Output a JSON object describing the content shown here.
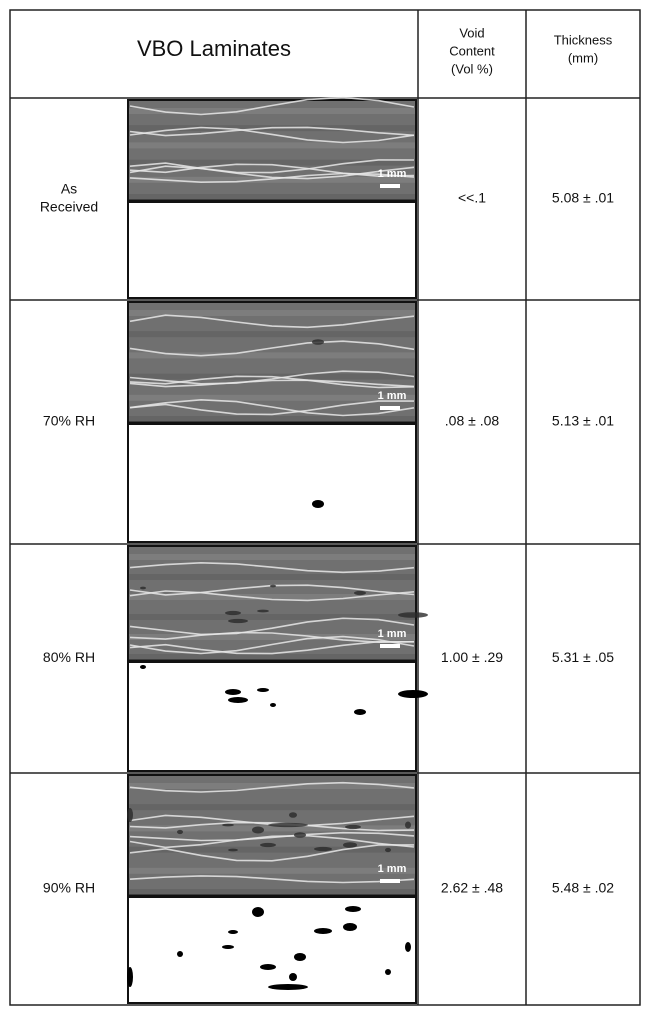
{
  "header": {
    "title": "VBO Laminates",
    "void_content": [
      "Void",
      "Content",
      "(Vol %)"
    ],
    "thickness": [
      "Thickness",
      "(mm)"
    ]
  },
  "rows": [
    {
      "label": [
        "As",
        "Received"
      ],
      "scale_label": "1 mm",
      "void_content": "<<.1",
      "thickness": "5.08 ± .01"
    },
    {
      "label": [
        "70% RH"
      ],
      "scale_label": "1 mm",
      "void_content": ".08 ± .08",
      "thickness": "5.13 ± .01"
    },
    {
      "label": [
        "80% RH"
      ],
      "scale_label": "1 mm",
      "void_content": "1.00 ± .29",
      "thickness": "5.31 ± .05"
    },
    {
      "label": [
        "90% RH"
      ],
      "scale_label": "1 mm",
      "void_content": "2.62 ± .48",
      "thickness": "5.48 ± .02"
    }
  ]
}
